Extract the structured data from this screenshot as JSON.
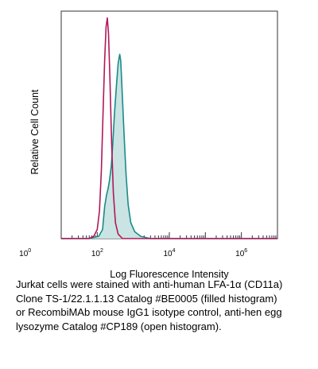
{
  "chart_data": {
    "type": "area",
    "title": "",
    "xlabel": "Log Fluorescence Intensity",
    "ylabel": "Relative Cell Count",
    "xscale": "log",
    "xlim": [
      10,
      10000000
    ],
    "ylim": [
      0,
      1
    ],
    "xticks": [
      {
        "base": "10",
        "exp": "0"
      },
      {
        "base": "10",
        "exp": "2"
      },
      {
        "base": "10",
        "exp": "4"
      },
      {
        "base": "10",
        "exp": "6"
      }
    ],
    "grid": false,
    "legend": "none",
    "series": [
      {
        "style": "filled histogram",
        "stroke": "#1b8a8a",
        "fill": "#c9e4e2",
        "points": [
          [
            10,
            0.0
          ],
          [
            60,
            0.0
          ],
          [
            110,
            0.01
          ],
          [
            140,
            0.04
          ],
          [
            160,
            0.14
          ],
          [
            180,
            0.19
          ],
          [
            200,
            0.22
          ],
          [
            220,
            0.26
          ],
          [
            245,
            0.32
          ],
          [
            270,
            0.42
          ],
          [
            300,
            0.55
          ],
          [
            340,
            0.67
          ],
          [
            380,
            0.77
          ],
          [
            420,
            0.81
          ],
          [
            450,
            0.78
          ],
          [
            500,
            0.62
          ],
          [
            560,
            0.44
          ],
          [
            630,
            0.28
          ],
          [
            720,
            0.15
          ],
          [
            850,
            0.07
          ],
          [
            1100,
            0.03
          ],
          [
            1600,
            0.01
          ],
          [
            3000,
            0.0
          ],
          [
            10000000,
            0.0
          ]
        ]
      },
      {
        "style": "open histogram",
        "stroke": "#b0185a",
        "points": [
          [
            10,
            0.0
          ],
          [
            60,
            0.0
          ],
          [
            80,
            0.01
          ],
          [
            100,
            0.04
          ],
          [
            115,
            0.12
          ],
          [
            130,
            0.3
          ],
          [
            145,
            0.55
          ],
          [
            160,
            0.78
          ],
          [
            175,
            0.93
          ],
          [
            190,
            0.97
          ],
          [
            205,
            0.9
          ],
          [
            225,
            0.7
          ],
          [
            250,
            0.42
          ],
          [
            280,
            0.2
          ],
          [
            320,
            0.07
          ],
          [
            380,
            0.02
          ],
          [
            500,
            0.0
          ],
          [
            10000000,
            0.0
          ]
        ]
      }
    ]
  },
  "caption": {
    "lines": [
      "Jurkat cells were stained with anti-human LFA-1α (CD11a)",
      "Clone TS-1/22.1.1.13 Catalog #BE0005  (filled histogram)",
      "or RecombiMAb mouse IgG1 isotype control, anti-hen egg",
      "lysozyme Catalog #CP189 (open histogram)."
    ]
  }
}
